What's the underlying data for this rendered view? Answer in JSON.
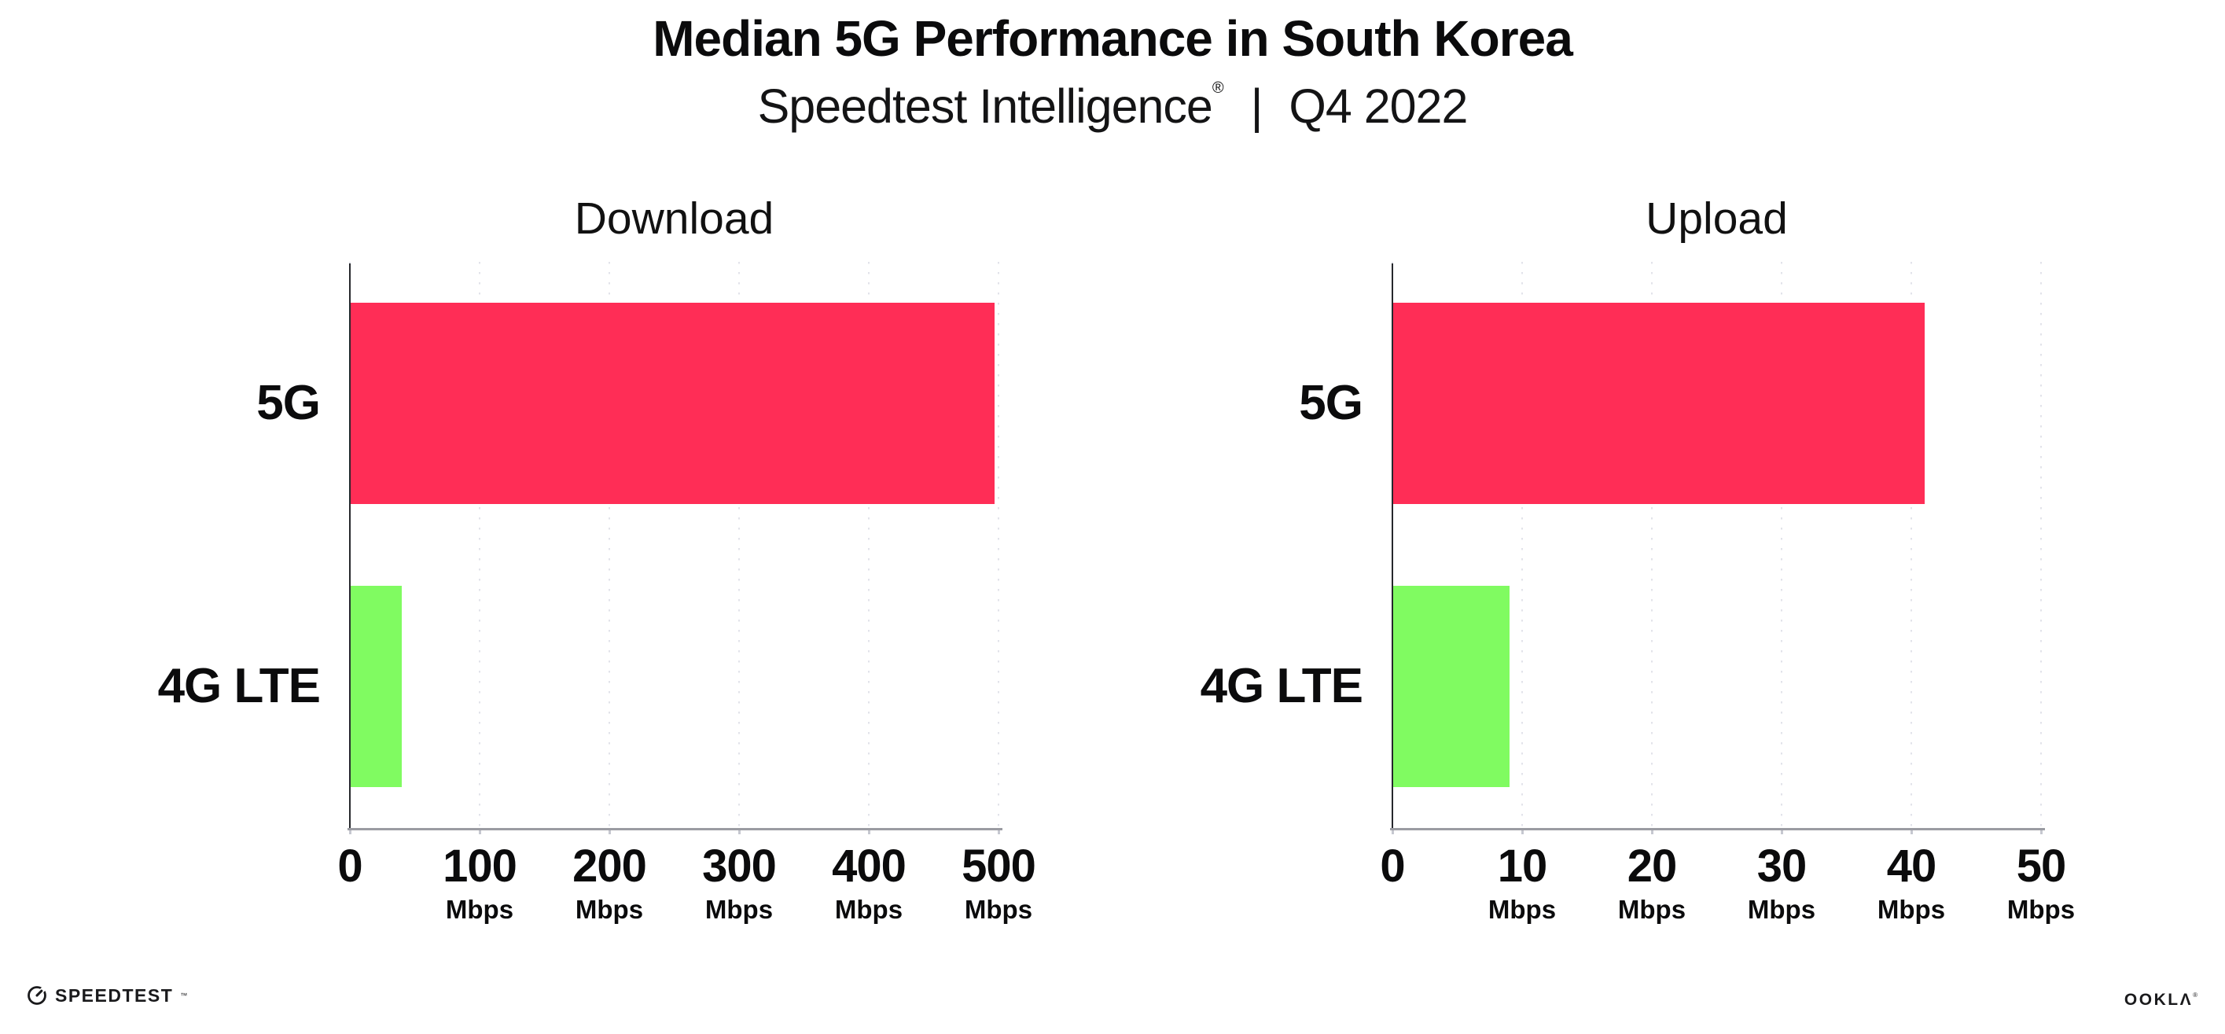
{
  "header": {
    "title": "Median 5G Performance in South Korea",
    "subtitle_product": "Speedtest Intelligence",
    "subtitle_reg": "®",
    "subtitle_divider": "|",
    "subtitle_period": "Q4 2022"
  },
  "chart_data": [
    {
      "type": "bar",
      "orientation": "horizontal",
      "title": "Download",
      "categories": [
        "5G",
        "4G LTE"
      ],
      "values": [
        497,
        40
      ],
      "unit": "Mbps",
      "xlim": [
        0,
        500
      ],
      "xticks": [
        {
          "value": 0,
          "label": "0",
          "unit": ""
        },
        {
          "value": 100,
          "label": "100",
          "unit": "Mbps"
        },
        {
          "value": 200,
          "label": "200",
          "unit": "Mbps"
        },
        {
          "value": 300,
          "label": "300",
          "unit": "Mbps"
        },
        {
          "value": 400,
          "label": "400",
          "unit": "Mbps"
        },
        {
          "value": 500,
          "label": "500",
          "unit": "Mbps"
        }
      ],
      "bar_colors": [
        "#FF2D56",
        "#80FB61"
      ],
      "grid": "vertical-dotted",
      "legend": "none"
    },
    {
      "type": "bar",
      "orientation": "horizontal",
      "title": "Upload",
      "categories": [
        "5G",
        "4G LTE"
      ],
      "values": [
        41,
        9
      ],
      "unit": "Mbps",
      "xlim": [
        0,
        50
      ],
      "xticks": [
        {
          "value": 0,
          "label": "0",
          "unit": ""
        },
        {
          "value": 10,
          "label": "10",
          "unit": "Mbps"
        },
        {
          "value": 20,
          "label": "20",
          "unit": "Mbps"
        },
        {
          "value": 30,
          "label": "30",
          "unit": "Mbps"
        },
        {
          "value": 40,
          "label": "40",
          "unit": "Mbps"
        },
        {
          "value": 50,
          "label": "50",
          "unit": "Mbps"
        }
      ],
      "bar_colors": [
        "#FF2D56",
        "#80FB61"
      ],
      "grid": "vertical-dotted",
      "legend": "none"
    }
  ],
  "footer": {
    "speedtest_label": "SPEEDTEST",
    "speedtest_mark": "™",
    "ookla_label": "OOKLΛ",
    "ookla_mark": "®"
  },
  "colors": {
    "bar_5g": "#FF2D56",
    "bar_4g_lte": "#80FB61",
    "gridline": "#e2e3ea",
    "y_axis": "#26282d",
    "x_axis": "#9b9ca2",
    "text": "#0b0b0c"
  }
}
